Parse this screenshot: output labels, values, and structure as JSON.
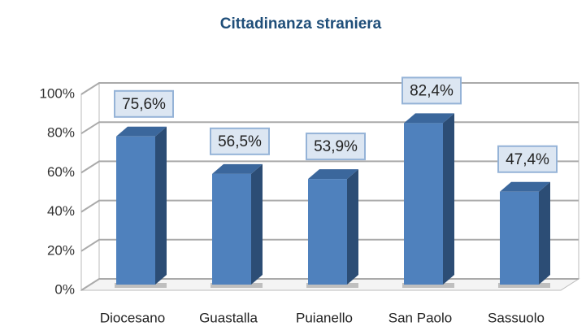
{
  "chart_data": {
    "type": "bar3d",
    "title": "Cittadinanza straniera",
    "categories": [
      "Diocesano",
      "Guastalla",
      "Puianello",
      "San Paolo",
      "Sassuolo"
    ],
    "values": [
      75.6,
      56.5,
      53.9,
      82.4,
      47.4
    ],
    "value_labels": [
      "75,6%",
      "56,5%",
      "53,9%",
      "82,4%",
      "47,4%"
    ],
    "color": "#4f81bd",
    "ylim": [
      0,
      100
    ],
    "yticks": [
      {
        "value": 0,
        "label": "0%"
      },
      {
        "value": 20,
        "label": "20%"
      },
      {
        "value": 40,
        "label": "40%"
      },
      {
        "value": 60,
        "label": "60%"
      },
      {
        "value": 80,
        "label": "80%"
      },
      {
        "value": 100,
        "label": "100%"
      }
    ],
    "grid": true
  }
}
